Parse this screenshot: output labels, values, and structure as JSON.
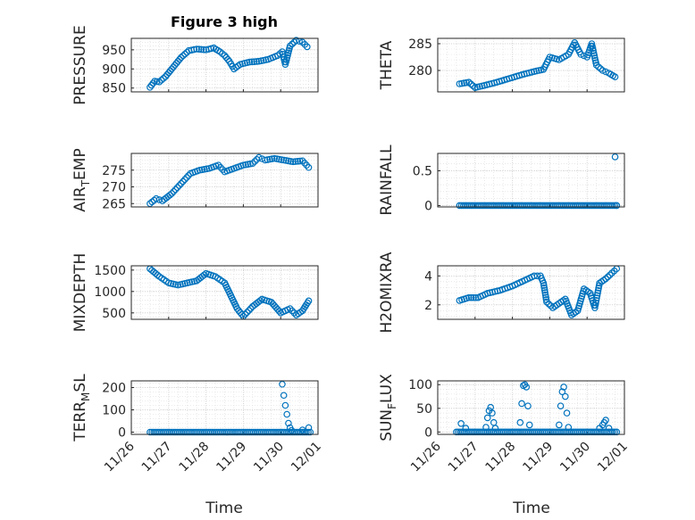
{
  "figure": {
    "title": "Figure 3 high",
    "x_ticks": [
      "11/26",
      "11/27",
      "11/28",
      "11/29",
      "11/30",
      "12/01"
    ],
    "x_label": "Time"
  },
  "chart_data": [
    {
      "type": "scatter",
      "ylabel": "PRESSURE",
      "grid": "on",
      "marker": "open-circle",
      "color": "#0072bd",
      "xlim": [
        "11/26",
        "12/01"
      ],
      "ylim": [
        840,
        980
      ],
      "yticks": [
        850,
        900,
        950
      ],
      "points": [
        {
          "x": "11/26 12:00",
          "y": 852
        },
        {
          "x": "11/26 15:00",
          "y": 868
        },
        {
          "x": "11/26 18:00",
          "y": 866
        },
        {
          "x": "11/26 22:00",
          "y": 880
        },
        {
          "x": "11/27 03:00",
          "y": 905
        },
        {
          "x": "11/27 08:00",
          "y": 930
        },
        {
          "x": "11/27 13:00",
          "y": 948
        },
        {
          "x": "11/27 18:00",
          "y": 952
        },
        {
          "x": "11/28 00:00",
          "y": 950
        },
        {
          "x": "11/28 05:00",
          "y": 955
        },
        {
          "x": "11/28 09:00",
          "y": 945
        },
        {
          "x": "11/28 12:00",
          "y": 935
        },
        {
          "x": "11/28 15:00",
          "y": 920
        },
        {
          "x": "11/28 18:00",
          "y": 900
        },
        {
          "x": "11/28 22:00",
          "y": 912
        },
        {
          "x": "11/29 04:00",
          "y": 918
        },
        {
          "x": "11/29 10:00",
          "y": 920
        },
        {
          "x": "11/29 16:00",
          "y": 925
        },
        {
          "x": "11/29 22:00",
          "y": 935
        },
        {
          "x": "11/30 01:00",
          "y": 945
        },
        {
          "x": "11/30 03:00",
          "y": 912
        },
        {
          "x": "11/30 06:00",
          "y": 960
        },
        {
          "x": "11/30 10:00",
          "y": 975
        },
        {
          "x": "11/30 14:00",
          "y": 970
        },
        {
          "x": "11/30 17:00",
          "y": 958
        }
      ]
    },
    {
      "type": "scatter",
      "ylabel": "THETA",
      "grid": "on",
      "marker": "open-circle",
      "color": "#0072bd",
      "xlim": [
        "11/26",
        "12/01"
      ],
      "ylim": [
        276,
        286
      ],
      "yticks": [
        280,
        285
      ],
      "points": [
        {
          "x": "11/26 14:00",
          "y": 277.5
        },
        {
          "x": "11/26 20:00",
          "y": 277.8
        },
        {
          "x": "11/27 00:00",
          "y": 276.8
        },
        {
          "x": "11/27 06:00",
          "y": 277.2
        },
        {
          "x": "11/27 14:00",
          "y": 277.8
        },
        {
          "x": "11/27 22:00",
          "y": 278.5
        },
        {
          "x": "11/28 06:00",
          "y": 279.2
        },
        {
          "x": "11/28 14:00",
          "y": 279.8
        },
        {
          "x": "11/28 20:00",
          "y": 280.2
        },
        {
          "x": "11/29 00:00",
          "y": 282.5
        },
        {
          "x": "11/29 06:00",
          "y": 282.0
        },
        {
          "x": "11/29 12:00",
          "y": 283.0
        },
        {
          "x": "11/29 16:00",
          "y": 285.2
        },
        {
          "x": "11/29 20:00",
          "y": 283.0
        },
        {
          "x": "11/30 00:00",
          "y": 282.5
        },
        {
          "x": "11/30 03:00",
          "y": 285.0
        },
        {
          "x": "11/30 06:00",
          "y": 281.0
        },
        {
          "x": "11/30 10:00",
          "y": 280.0
        },
        {
          "x": "11/30 14:00",
          "y": 279.5
        },
        {
          "x": "11/30 18:00",
          "y": 278.8
        }
      ]
    },
    {
      "type": "scatter",
      "ylabel": "AIR_TEMP",
      "ylabel_main": "AIR",
      "ylabel_sub": "T",
      "ylabel_tail": "EMP",
      "grid": "on",
      "marker": "open-circle",
      "color": "#0072bd",
      "xlim": [
        "11/26",
        "12/01"
      ],
      "ylim": [
        264,
        280
      ],
      "yticks": [
        265,
        270,
        275
      ],
      "points": [
        {
          "x": "11/26 12:00",
          "y": 265.0
        },
        {
          "x": "11/26 16:00",
          "y": 266.5
        },
        {
          "x": "11/26 20:00",
          "y": 265.8
        },
        {
          "x": "11/27 02:00",
          "y": 268.0
        },
        {
          "x": "11/27 08:00",
          "y": 271.0
        },
        {
          "x": "11/27 14:00",
          "y": 274.0
        },
        {
          "x": "11/27 20:00",
          "y": 275.0
        },
        {
          "x": "11/28 02:00",
          "y": 275.5
        },
        {
          "x": "11/28 08:00",
          "y": 276.5
        },
        {
          "x": "11/28 12:00",
          "y": 274.5
        },
        {
          "x": "11/28 18:00",
          "y": 275.5
        },
        {
          "x": "11/29 00:00",
          "y": 276.5
        },
        {
          "x": "11/29 06:00",
          "y": 277.0
        },
        {
          "x": "11/29 10:00",
          "y": 278.8
        },
        {
          "x": "11/29 14:00",
          "y": 278.0
        },
        {
          "x": "11/29 20:00",
          "y": 278.5
        },
        {
          "x": "11/30 02:00",
          "y": 278.0
        },
        {
          "x": "11/30 08:00",
          "y": 277.5
        },
        {
          "x": "11/30 14:00",
          "y": 277.8
        },
        {
          "x": "11/30 18:00",
          "y": 275.8
        }
      ]
    },
    {
      "type": "scatter",
      "ylabel": "RAINFALL",
      "grid": "on",
      "marker": "open-circle",
      "color": "#0072bd",
      "xlim": [
        "11/26",
        "12/01"
      ],
      "ylim": [
        -0.02,
        0.75
      ],
      "yticks": [
        0,
        0.5
      ],
      "baseline": {
        "y": 0,
        "from": "11/26 14:00",
        "to": "11/30 19:00"
      },
      "points": [
        {
          "x": "11/30 18:00",
          "y": 0.7
        },
        {
          "x": "11/30 19:00",
          "y": 0.0
        }
      ]
    },
    {
      "type": "scatter",
      "ylabel": "MIXDEPTH",
      "grid": "on",
      "marker": "open-circle",
      "color": "#0072bd",
      "xlim": [
        "11/26",
        "12/01"
      ],
      "ylim": [
        350,
        1600
      ],
      "yticks": [
        500,
        1000,
        1500
      ],
      "points": [
        {
          "x": "11/26 12:00",
          "y": 1530
        },
        {
          "x": "11/26 18:00",
          "y": 1350
        },
        {
          "x": "11/27 00:00",
          "y": 1200
        },
        {
          "x": "11/27 06:00",
          "y": 1150
        },
        {
          "x": "11/27 12:00",
          "y": 1200
        },
        {
          "x": "11/27 18:00",
          "y": 1250
        },
        {
          "x": "11/28 00:00",
          "y": 1420
        },
        {
          "x": "11/28 06:00",
          "y": 1350
        },
        {
          "x": "11/28 12:00",
          "y": 1200
        },
        {
          "x": "11/28 16:00",
          "y": 900
        },
        {
          "x": "11/28 20:00",
          "y": 600
        },
        {
          "x": "11/29 00:00",
          "y": 420
        },
        {
          "x": "11/29 06:00",
          "y": 650
        },
        {
          "x": "11/29 12:00",
          "y": 820
        },
        {
          "x": "11/29 18:00",
          "y": 750
        },
        {
          "x": "11/30 00:00",
          "y": 500
        },
        {
          "x": "11/30 06:00",
          "y": 600
        },
        {
          "x": "11/30 10:00",
          "y": 450
        },
        {
          "x": "11/30 14:00",
          "y": 550
        },
        {
          "x": "11/30 18:00",
          "y": 780
        }
      ]
    },
    {
      "type": "scatter",
      "ylabel": "H2OMIXRA",
      "grid": "on",
      "marker": "open-circle",
      "color": "#0072bd",
      "xlim": [
        "11/26",
        "12/01"
      ],
      "ylim": [
        1,
        4.7
      ],
      "yticks": [
        2,
        4
      ],
      "points": [
        {
          "x": "11/26 14:00",
          "y": 2.3
        },
        {
          "x": "11/26 20:00",
          "y": 2.5
        },
        {
          "x": "11/27 02:00",
          "y": 2.5
        },
        {
          "x": "11/27 08:00",
          "y": 2.8
        },
        {
          "x": "11/27 16:00",
          "y": 3.0
        },
        {
          "x": "11/28 00:00",
          "y": 3.3
        },
        {
          "x": "11/28 08:00",
          "y": 3.7
        },
        {
          "x": "11/28 14:00",
          "y": 4.0
        },
        {
          "x": "11/28 18:00",
          "y": 4.0
        },
        {
          "x": "11/28 20:00",
          "y": 3.5
        },
        {
          "x": "11/28 22:00",
          "y": 2.2
        },
        {
          "x": "11/29 02:00",
          "y": 1.8
        },
        {
          "x": "11/29 06:00",
          "y": 2.1
        },
        {
          "x": "11/29 10:00",
          "y": 2.4
        },
        {
          "x": "11/29 14:00",
          "y": 1.3
        },
        {
          "x": "11/29 18:00",
          "y": 1.6
        },
        {
          "x": "11/29 22:00",
          "y": 3.1
        },
        {
          "x": "11/30 02:00",
          "y": 2.8
        },
        {
          "x": "11/30 05:00",
          "y": 1.8
        },
        {
          "x": "11/30 08:00",
          "y": 3.5
        },
        {
          "x": "11/30 12:00",
          "y": 3.8
        },
        {
          "x": "11/30 16:00",
          "y": 4.2
        },
        {
          "x": "11/30 19:00",
          "y": 4.5
        }
      ]
    },
    {
      "type": "scatter",
      "ylabel": "TERR_MSL",
      "ylabel_main": "TERR",
      "ylabel_sub": "M",
      "ylabel_tail": "SL",
      "grid": "on",
      "marker": "open-circle",
      "color": "#0072bd",
      "xlim": [
        "11/26",
        "12/01"
      ],
      "ylim": [
        -10,
        230
      ],
      "yticks": [
        0,
        100,
        200
      ],
      "baseline": {
        "y": 0,
        "from": "11/26 12:00",
        "to": "11/30 19:00"
      },
      "points": [
        {
          "x": "11/30 01:00",
          "y": 215
        },
        {
          "x": "11/30 02:00",
          "y": 165
        },
        {
          "x": "11/30 03:00",
          "y": 120
        },
        {
          "x": "11/30 04:00",
          "y": 80
        },
        {
          "x": "11/30 05:00",
          "y": 40
        },
        {
          "x": "11/30 06:00",
          "y": 20
        },
        {
          "x": "11/30 07:00",
          "y": 8
        },
        {
          "x": "11/30 14:00",
          "y": 10
        },
        {
          "x": "11/30 18:00",
          "y": 20
        }
      ]
    },
    {
      "type": "scatter",
      "ylabel": "SUN_FLUX",
      "ylabel_main": "SUN",
      "ylabel_sub": "F",
      "ylabel_tail": "LUX",
      "grid": "on",
      "marker": "open-circle",
      "color": "#0072bd",
      "xlim": [
        "11/26",
        "12/01"
      ],
      "ylim": [
        -5,
        108
      ],
      "yticks": [
        0,
        50,
        100
      ],
      "baseline": {
        "y": 0,
        "from": "11/26 12:00",
        "to": "11/30 19:00"
      },
      "points": [
        {
          "x": "11/26 15:00",
          "y": 18
        },
        {
          "x": "11/26 18:00",
          "y": 8
        },
        {
          "x": "11/27 07:00",
          "y": 10
        },
        {
          "x": "11/27 08:00",
          "y": 30
        },
        {
          "x": "11/27 09:00",
          "y": 45
        },
        {
          "x": "11/27 10:00",
          "y": 52
        },
        {
          "x": "11/27 11:00",
          "y": 40
        },
        {
          "x": "11/27 12:00",
          "y": 20
        },
        {
          "x": "11/27 13:00",
          "y": 8
        },
        {
          "x": "11/28 05:00",
          "y": 20
        },
        {
          "x": "11/28 06:00",
          "y": 60
        },
        {
          "x": "11/28 07:00",
          "y": 98
        },
        {
          "x": "11/28 08:00",
          "y": 100
        },
        {
          "x": "11/28 09:00",
          "y": 95
        },
        {
          "x": "11/28 10:00",
          "y": 55
        },
        {
          "x": "11/28 11:00",
          "y": 15
        },
        {
          "x": "11/29 06:00",
          "y": 15
        },
        {
          "x": "11/29 07:00",
          "y": 55
        },
        {
          "x": "11/29 08:00",
          "y": 85
        },
        {
          "x": "11/29 09:00",
          "y": 95
        },
        {
          "x": "11/29 10:00",
          "y": 75
        },
        {
          "x": "11/29 11:00",
          "y": 40
        },
        {
          "x": "11/29 12:00",
          "y": 10
        },
        {
          "x": "11/30 08:00",
          "y": 8
        },
        {
          "x": "11/30 10:00",
          "y": 15
        },
        {
          "x": "11/30 11:00",
          "y": 20
        },
        {
          "x": "11/30 12:00",
          "y": 25
        },
        {
          "x": "11/30 14:00",
          "y": 8
        }
      ]
    }
  ]
}
